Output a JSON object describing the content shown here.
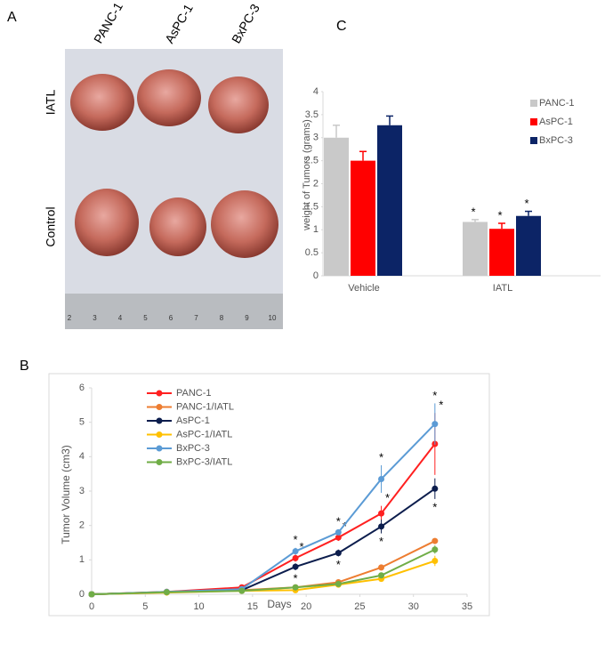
{
  "panels": {
    "labels": [
      "A",
      "B",
      "C"
    ],
    "photo": {
      "columns": [
        "PANC-1",
        "AsPC-1",
        "BxPC-3"
      ],
      "rows": [
        "IATL",
        "Control"
      ],
      "ruler": [
        2,
        3,
        4,
        5,
        6,
        7,
        8,
        9,
        10
      ]
    }
  },
  "chart_data": [
    {
      "type": "bar",
      "ylabel": "weight of Tumors (grams)",
      "categories": [
        "Vehicle",
        "IATL"
      ],
      "ylim": [
        0,
        4
      ],
      "yticks": [
        0,
        0.5,
        1,
        1.5,
        2,
        2.5,
        3,
        3.5,
        4
      ],
      "grid": false,
      "legend": "top-right",
      "series": [
        {
          "name": "PANC-1",
          "color": "#c9c9c9",
          "values": [
            3.0,
            1.17
          ],
          "errors": [
            0.27,
            0.05
          ],
          "significance": [
            null,
            "*"
          ]
        },
        {
          "name": "AsPC-1",
          "color": "#ff0000",
          "values": [
            2.5,
            1.02
          ],
          "errors": [
            0.2,
            0.12
          ],
          "significance": [
            null,
            "*"
          ]
        },
        {
          "name": "BxPC-3",
          "color": "#0c2466",
          "values": [
            3.27,
            1.3
          ],
          "errors": [
            0.2,
            0.1
          ],
          "significance": [
            null,
            "*"
          ]
        }
      ]
    },
    {
      "type": "line",
      "xlabel": "Days",
      "ylabel": "Tumor Volume (cm3)",
      "x": [
        0,
        7,
        14,
        19,
        23,
        27,
        32
      ],
      "xlim": [
        0,
        35
      ],
      "xticks": [
        0,
        5,
        10,
        15,
        20,
        25,
        30,
        35
      ],
      "ylim": [
        0,
        6
      ],
      "yticks": [
        0,
        1,
        2,
        3,
        4,
        5,
        6
      ],
      "grid": false,
      "legend": "top-left",
      "series": [
        {
          "name": "PANC-1",
          "color": "#ff2020",
          "values": [
            0,
            0.07,
            0.2,
            1.05,
            1.65,
            2.35,
            4.37
          ],
          "errors": [
            0,
            0,
            0.03,
            0.1,
            0.1,
            0.22,
            0.9
          ],
          "significance": [
            null,
            null,
            null,
            "*",
            "*",
            "*",
            "*"
          ]
        },
        {
          "name": "PANC-1/IATL",
          "color": "#ed7d31",
          "values": [
            0,
            0.06,
            0.12,
            0.2,
            0.35,
            0.78,
            1.55
          ],
          "errors": [
            0,
            0,
            0,
            0.03,
            0.04,
            0.08,
            0.08
          ],
          "significance": [
            null,
            null,
            null,
            null,
            null,
            null,
            null
          ]
        },
        {
          "name": "AsPC-1",
          "color": "#0c1d4d",
          "values": [
            0,
            0.06,
            0.12,
            0.8,
            1.2,
            1.97,
            3.07
          ],
          "errors": [
            0,
            0,
            0,
            0.1,
            0.1,
            0.2,
            0.3
          ],
          "significance": [
            null,
            null,
            null,
            "*",
            "*",
            "*",
            "*"
          ]
        },
        {
          "name": "AsPC-1/IATL",
          "color": "#ffc000",
          "values": [
            0,
            0.05,
            0.1,
            0.12,
            0.28,
            0.45,
            0.97
          ],
          "errors": [
            0,
            0,
            0,
            0.02,
            0.03,
            0.06,
            0.15
          ],
          "significance": [
            null,
            null,
            null,
            null,
            null,
            null,
            null
          ]
        },
        {
          "name": "BxPC-3",
          "color": "#5b9bd5",
          "values": [
            0,
            0.07,
            0.15,
            1.25,
            1.8,
            3.35,
            4.95
          ],
          "errors": [
            0,
            0,
            0,
            0.1,
            0.08,
            0.4,
            0.6
          ],
          "significance": [
            null,
            null,
            null,
            "*",
            "*",
            "*",
            "*"
          ]
        },
        {
          "name": "BxPC-3/IATL",
          "color": "#70ad47",
          "values": [
            0,
            0.06,
            0.1,
            0.2,
            0.3,
            0.55,
            1.3
          ],
          "errors": [
            0,
            0,
            0,
            0.03,
            0.04,
            0.07,
            0.12
          ],
          "significance": [
            null,
            null,
            null,
            null,
            null,
            null,
            null
          ]
        }
      ]
    }
  ]
}
